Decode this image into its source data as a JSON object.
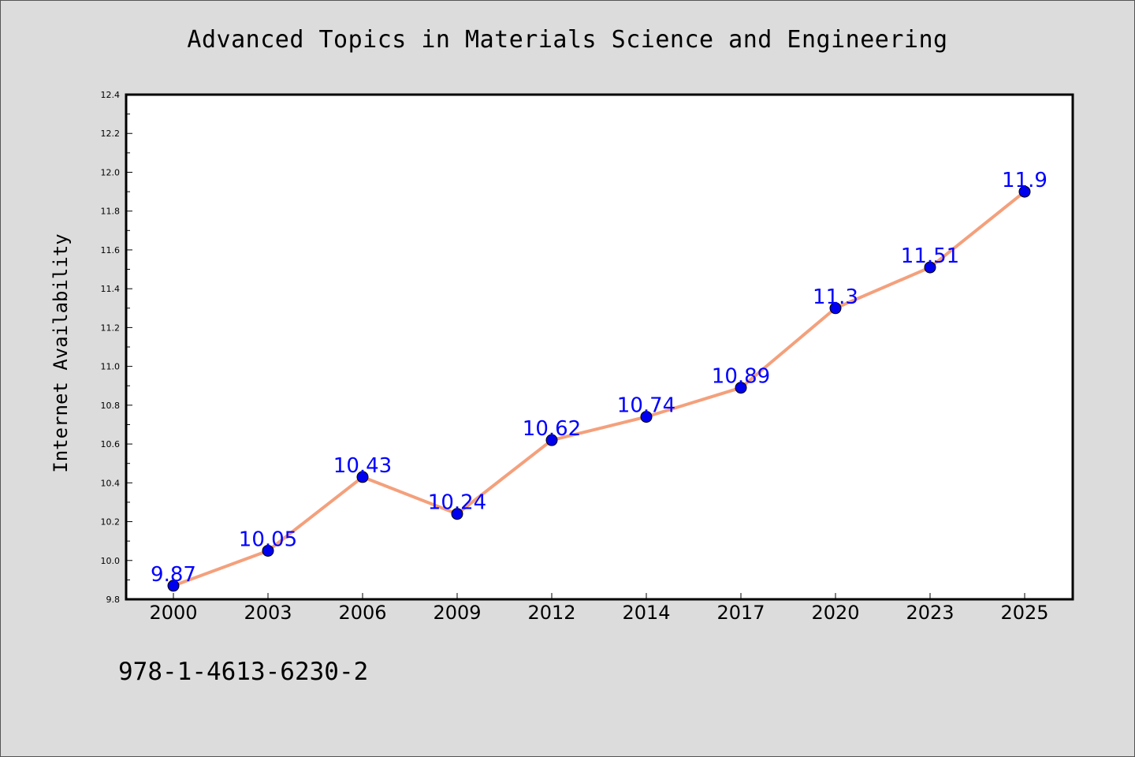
{
  "page": {
    "isbn": "978-1-4613-6230-2"
  },
  "chart_data": {
    "type": "line",
    "title": "Advanced Topics in Materials Science and Engineering",
    "xlabel": "",
    "ylabel": "Internet Availability",
    "categories": [
      "2000",
      "2003",
      "2006",
      "2009",
      "2012",
      "2014",
      "2017",
      "2020",
      "2023",
      "2025"
    ],
    "series": [
      {
        "values": [
          9.87,
          10.05,
          10.43,
          10.24,
          10.62,
          10.74,
          10.89,
          11.3,
          11.51,
          11.9
        ],
        "line_color": "#f4a07c",
        "marker_color": "#0000ee",
        "label_color": "#0000ff"
      }
    ],
    "data_labels": [
      "9.87",
      "10.05",
      "10.43",
      "10.24",
      "10.62",
      "10.74",
      "10.89",
      "11.3",
      "11.51",
      "11.9"
    ],
    "ylim": [
      9.8,
      12.4
    ],
    "yticks": [
      "9.8",
      "10.0",
      "10.2",
      "10.4",
      "10.6",
      "10.8",
      "11.0",
      "11.2",
      "11.4",
      "11.6",
      "11.8",
      "12.0",
      "12.2",
      "12.4"
    ],
    "grid": false,
    "legend": "none"
  }
}
